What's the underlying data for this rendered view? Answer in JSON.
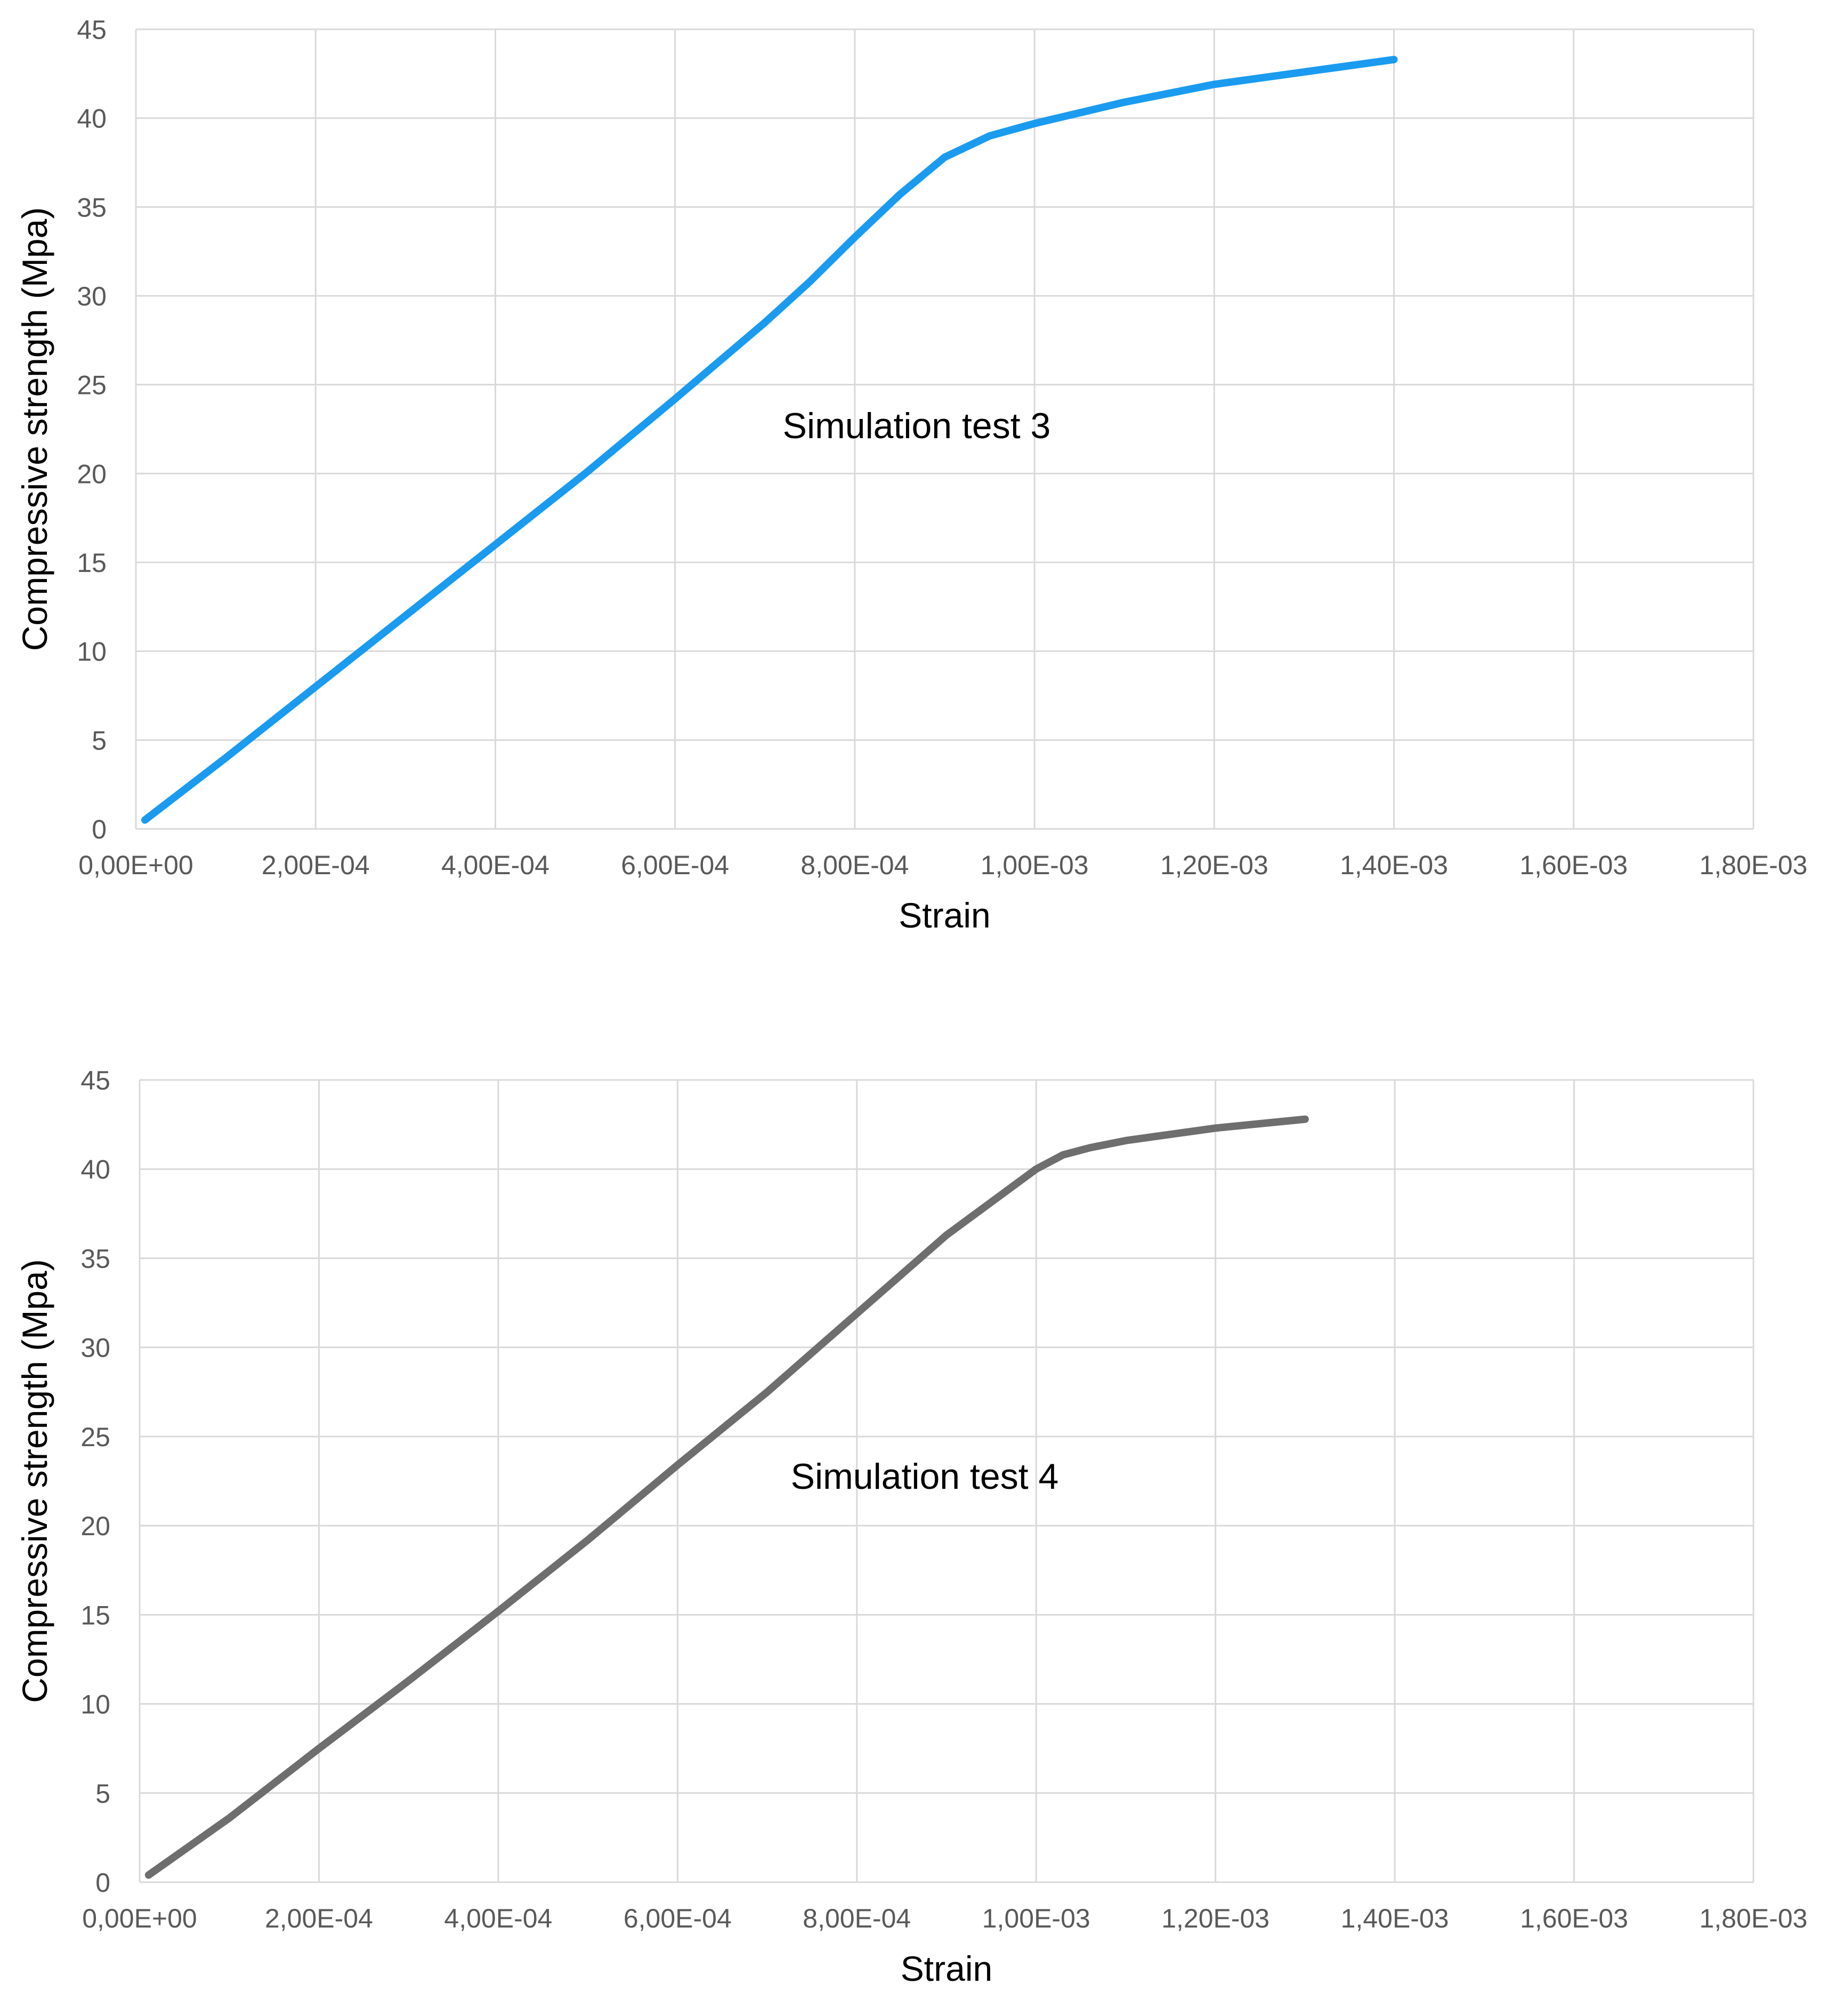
{
  "chart_data": [
    {
      "type": "line",
      "title": "",
      "xlabel": "Strain",
      "ylabel": "Compressive strength (Mpa)",
      "xlim": [
        0,
        0.0018
      ],
      "ylim": [
        0,
        45
      ],
      "x_ticks": [
        0,
        0.0002,
        0.0004,
        0.0006,
        0.0008,
        0.001,
        0.0012,
        0.0014,
        0.0016,
        0.0018
      ],
      "x_tick_labels": [
        "0,00E+00",
        "2,00E-04",
        "4,00E-04",
        "6,00E-04",
        "8,00E-04",
        "1,00E-03",
        "1,20E-03",
        "1,40E-03",
        "1,60E-03",
        "1,80E-03"
      ],
      "y_ticks": [
        0,
        5,
        10,
        15,
        20,
        25,
        30,
        35,
        40,
        45
      ],
      "y_tick_labels": [
        "0",
        "5",
        "10",
        "15",
        "20",
        "25",
        "30",
        "35",
        "40",
        "45"
      ],
      "grid": true,
      "legend": "none",
      "annotation": "Simulation test 3",
      "series": [
        {
          "color": "#1a9bf0",
          "x": [
            1e-05,
            0.0001,
            0.0002,
            0.0003,
            0.0004,
            0.0005,
            0.0006,
            0.0007,
            0.00075,
            0.0008,
            0.00085,
            0.0009,
            0.00095,
            0.001,
            0.00105,
            0.0011,
            0.0012,
            0.0013,
            0.0014
          ],
          "y": [
            0.5,
            4.0,
            8.0,
            12.0,
            16.0,
            20.0,
            24.2,
            28.5,
            30.8,
            33.3,
            35.7,
            37.8,
            39.0,
            39.7,
            40.3,
            40.9,
            41.9,
            42.6,
            43.3
          ]
        }
      ]
    },
    {
      "type": "line",
      "title": "",
      "xlabel": "Strain",
      "ylabel": "Compressive strength (Mpa)",
      "xlim": [
        0,
        0.0018
      ],
      "ylim": [
        0,
        45
      ],
      "x_ticks": [
        0,
        0.0002,
        0.0004,
        0.0006,
        0.0008,
        0.001,
        0.0012,
        0.0014,
        0.0016,
        0.0018
      ],
      "x_tick_labels": [
        "0,00E+00",
        "2,00E-04",
        "4,00E-04",
        "6,00E-04",
        "8,00E-04",
        "1,00E-03",
        "1,20E-03",
        "1,40E-03",
        "1,60E-03",
        "1,80E-03"
      ],
      "y_ticks": [
        0,
        5,
        10,
        15,
        20,
        25,
        30,
        35,
        40,
        45
      ],
      "y_tick_labels": [
        "0",
        "5",
        "10",
        "15",
        "20",
        "25",
        "30",
        "35",
        "40",
        "45"
      ],
      "grid": true,
      "legend": "none",
      "annotation": "Simulation test 4",
      "series": [
        {
          "color": "#6e6e6e",
          "x": [
            1e-05,
            0.0001,
            0.0002,
            0.0003,
            0.0004,
            0.0005,
            0.0006,
            0.0007,
            0.0008,
            0.0009,
            0.001,
            0.00103,
            0.00106,
            0.0011,
            0.0012,
            0.0013
          ],
          "y": [
            0.4,
            3.6,
            7.5,
            11.3,
            15.2,
            19.2,
            23.4,
            27.5,
            31.9,
            36.3,
            40.0,
            40.8,
            41.2,
            41.6,
            42.3,
            42.8
          ]
        }
      ]
    }
  ]
}
